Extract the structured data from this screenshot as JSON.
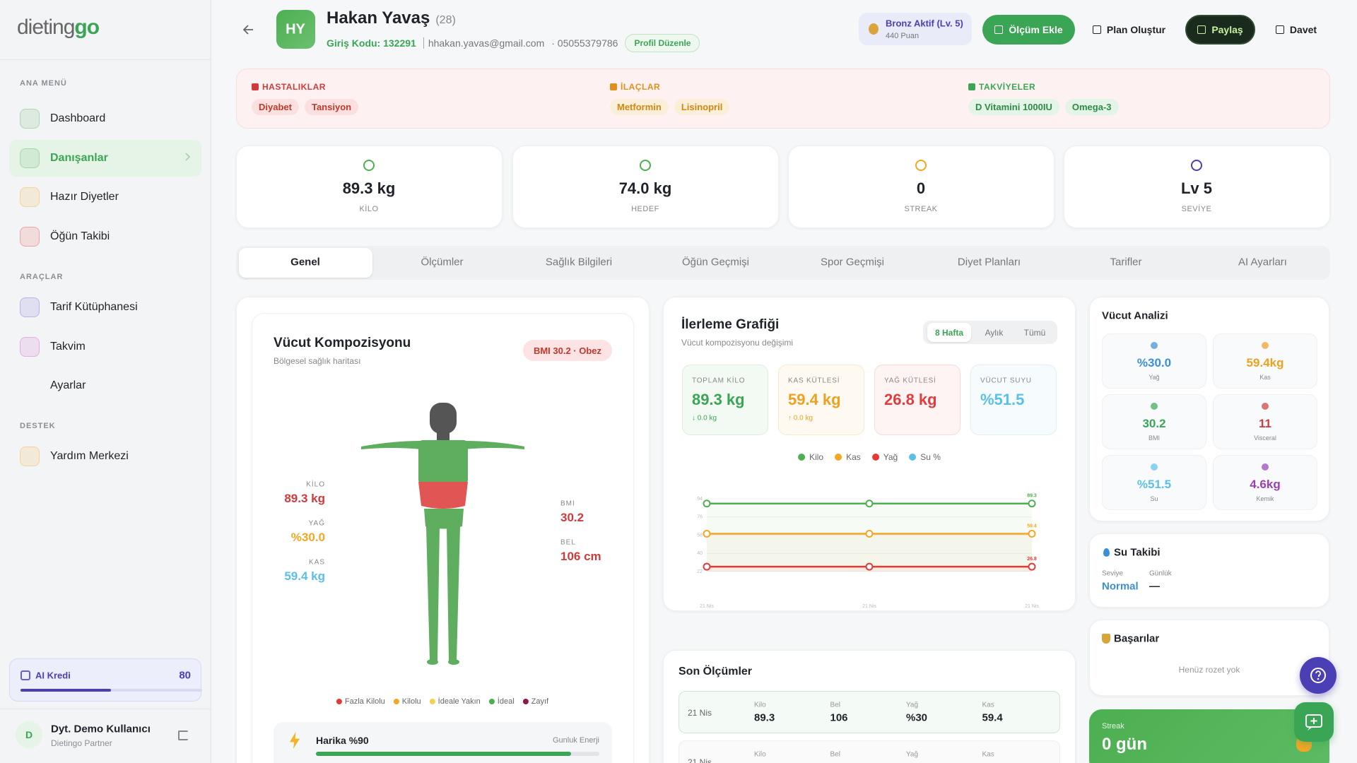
{
  "sidebar": {
    "logo_a": "dieting",
    "logo_b": "go",
    "sections": [
      {
        "title": "ANA MENÜ",
        "items": [
          "Dashboard",
          "Danışanlar",
          "Hazır Diyetler",
          "Öğün Takibi"
        ]
      },
      {
        "title": "ARAÇLAR",
        "items": [
          "Tarif Kütüphanesi",
          "Takvim",
          "Ayarlar"
        ]
      },
      {
        "title": "DESTEK",
        "items": [
          "Yardım Merkezi"
        ]
      }
    ],
    "credit": {
      "label": "AI Kredi",
      "value": 80
    },
    "user": {
      "initial": "D",
      "name": "Dyt. Demo Kullanıcı",
      "role": "Dietingo Partner"
    }
  },
  "header": {
    "initials": "HY",
    "name": "Hakan Yavaş",
    "age": "(28)",
    "code": "Giriş Kodu: 132291",
    "email": "hhakan.yavas@gmail.com",
    "phone": "· 05055379786",
    "edit": "Profil Düzenle",
    "badge": {
      "title": "Bronz Aktif (Lv. 5)",
      "points": "440 Puan"
    },
    "buttons": [
      "Ölçüm Ekle",
      "Plan Oluştur",
      "Paylaş",
      "Davet"
    ]
  },
  "health": [
    {
      "title": "HASTALIKLAR",
      "tags": [
        "Diyabet",
        "Tansiyon"
      ]
    },
    {
      "title": "İLAÇLAR",
      "tags": [
        "Metformin",
        "Lisinopril"
      ]
    },
    {
      "title": "TAKVİYELER",
      "tags": [
        "D Vitamini 1000IU",
        "Omega-3"
      ]
    }
  ],
  "stats": [
    {
      "value": "89.3 kg",
      "label": "KİLO"
    },
    {
      "value": "74.0 kg",
      "label": "HEDEF"
    },
    {
      "value": "0",
      "label": "STREAK"
    },
    {
      "value": "Lv 5",
      "label": "SEVİYE"
    }
  ],
  "tabs": [
    "Genel",
    "Ölçümler",
    "Sağlık Bilgileri",
    "Öğün Geçmişi",
    "Spor Geçmişi",
    "Diyet Planları",
    "Tarifler",
    "AI Ayarları"
  ],
  "body": {
    "title": "Vücut Kompozisyonu",
    "subtitle": "Bölgesel sağlık haritası",
    "bmi_badge": "BMI 30.2 · Obez",
    "left": [
      {
        "label": "KİLO",
        "value": "89.3 kg"
      },
      {
        "label": "YAĞ",
        "value": "%30.0"
      },
      {
        "label": "KAS",
        "value": "59.4 kg"
      }
    ],
    "right": [
      {
        "label": "BMI",
        "value": "30.2"
      },
      {
        "label": "BEL",
        "value": "106 cm"
      }
    ],
    "legend": [
      "Fazla Kilolu",
      "Kilolu",
      "İdeale Yakın",
      "İdeal",
      "Zayıf"
    ],
    "energy": {
      "label": "Harika %90",
      "caption": "Gunluk Enerji",
      "percent": 90
    }
  },
  "progress": {
    "title": "İlerleme Grafiği",
    "subtitle": "Vücut kompozisyonu değişimi",
    "ranges": [
      "8 Hafta",
      "Aylık",
      "Tümü"
    ],
    "cards": [
      {
        "label": "TOPLAM KİLO",
        "value": "89.3 kg",
        "delta": "↓ 0.0 kg"
      },
      {
        "label": "KAS KÜTLESİ",
        "value": "59.4 kg",
        "delta": "↑ 0.0 kg"
      },
      {
        "label": "YAĞ KÜTLESİ",
        "value": "26.8 kg"
      },
      {
        "label": "VÜCUT SUYU",
        "value": "%51.5"
      }
    ],
    "legend": [
      "Kilo",
      "Kas",
      "Yağ",
      "Su %"
    ]
  },
  "chart_data": {
    "type": "line",
    "categories": [
      "21 Nis",
      "21 Nis",
      "21 Nis"
    ],
    "series": [
      {
        "name": "Kilo",
        "color": "#4caf50",
        "values": [
          89.3,
          89.3,
          89.3
        ]
      },
      {
        "name": "Kas",
        "color": "#f5a623",
        "values": [
          59.4,
          59.4,
          59.4
        ]
      },
      {
        "name": "Yağ",
        "color": "#e53935",
        "values": [
          26.8,
          26.8,
          26.8
        ]
      }
    ],
    "ylim": [
      22,
      94
    ],
    "yticks": [
      22,
      40,
      58,
      76,
      94
    ],
    "grid": true
  },
  "recent": {
    "title": "Son Ölçümler",
    "headers": [
      "Kilo",
      "Bel",
      "Yağ",
      "Kas"
    ],
    "rows": [
      {
        "date": "21 Nis",
        "values": [
          "89.3",
          "106",
          "%30",
          "59.4"
        ]
      },
      {
        "date": "21 Nis",
        "values": []
      }
    ]
  },
  "analysis": {
    "title": "Vücut Analizi",
    "cells": [
      {
        "value": "%30.0",
        "label": "Yağ"
      },
      {
        "value": "59.4kg",
        "label": "Kas"
      },
      {
        "value": "30.2",
        "label": "BMI"
      },
      {
        "value": "11",
        "label": "Visceral"
      },
      {
        "value": "%51.5",
        "label": "Su"
      },
      {
        "value": "4.6kg",
        "label": "Kemik"
      }
    ]
  },
  "water": {
    "title": "Su Takibi",
    "level_label": "Seviye",
    "level": "Normal",
    "daily_label": "Günlük",
    "daily": "—"
  },
  "achievements": {
    "title": "Başarılar",
    "empty": "Henüz rozet yok"
  },
  "streak": {
    "label": "Streak",
    "value": "0 gün"
  }
}
